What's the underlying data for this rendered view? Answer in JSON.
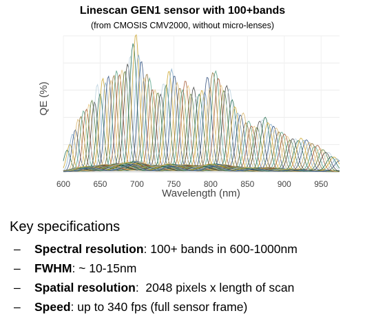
{
  "chart_data": {
    "type": "line",
    "title": "Linescan GEN1 sensor with 100+bands",
    "subtitle": "(from CMOSIS CMV2000, without micro-lenses)",
    "xlabel": "Wavelength (nm)",
    "ylabel": "QE (%)",
    "xlim": [
      600,
      975
    ],
    "x_ticks": [
      600,
      650,
      700,
      750,
      800,
      850,
      900,
      950
    ],
    "grid": true,
    "band_count": 100,
    "band_center_range": [
      605,
      975
    ],
    "fwhm_range_nm": [
      10,
      15
    ],
    "envelope": [
      [
        600,
        0.08
      ],
      [
        612,
        0.28
      ],
      [
        622,
        0.42
      ],
      [
        635,
        0.5
      ],
      [
        648,
        0.62
      ],
      [
        660,
        0.7
      ],
      [
        672,
        0.76
      ],
      [
        685,
        0.82
      ],
      [
        692,
        0.9
      ],
      [
        697,
        1.0
      ],
      [
        702,
        0.96
      ],
      [
        708,
        0.8
      ],
      [
        718,
        0.64
      ],
      [
        730,
        0.6
      ],
      [
        745,
        0.72
      ],
      [
        760,
        0.65
      ],
      [
        770,
        0.67
      ],
      [
        785,
        0.58
      ],
      [
        800,
        0.71
      ],
      [
        810,
        0.74
      ],
      [
        820,
        0.66
      ],
      [
        832,
        0.52
      ],
      [
        845,
        0.42
      ],
      [
        858,
        0.34
      ],
      [
        870,
        0.4
      ],
      [
        885,
        0.38
      ],
      [
        900,
        0.28
      ],
      [
        915,
        0.23
      ],
      [
        925,
        0.24
      ],
      [
        940,
        0.2
      ],
      [
        955,
        0.15
      ],
      [
        965,
        0.12
      ],
      [
        975,
        0.08
      ]
    ],
    "colors": [
      "#1f6b4e",
      "#c9a227",
      "#7fa9c9",
      "#2c4a7a",
      "#d9b56b",
      "#8b6c2f",
      "#4c9c80",
      "#a0522d",
      "#e6c47a",
      "#557a3a",
      "#3d3d3d",
      "#b8d0dd"
    ]
  },
  "specs": {
    "heading": "Key specifications",
    "items": [
      {
        "dash": "–",
        "key": "Spectral resolution",
        "sep": ": ",
        "value": "100+ bands in 600-1000nm"
      },
      {
        "dash": "–",
        "key": "FWHM",
        "sep": ": ",
        "value": "~ 10-15nm"
      },
      {
        "dash": "–",
        "key": "Spatial resolution",
        "sep": ":  ",
        "value": "2048 pixels x length of scan"
      },
      {
        "dash": "–",
        "key": "Speed",
        "sep": ": ",
        "value": "up to 340 fps (full sensor frame)"
      }
    ]
  }
}
